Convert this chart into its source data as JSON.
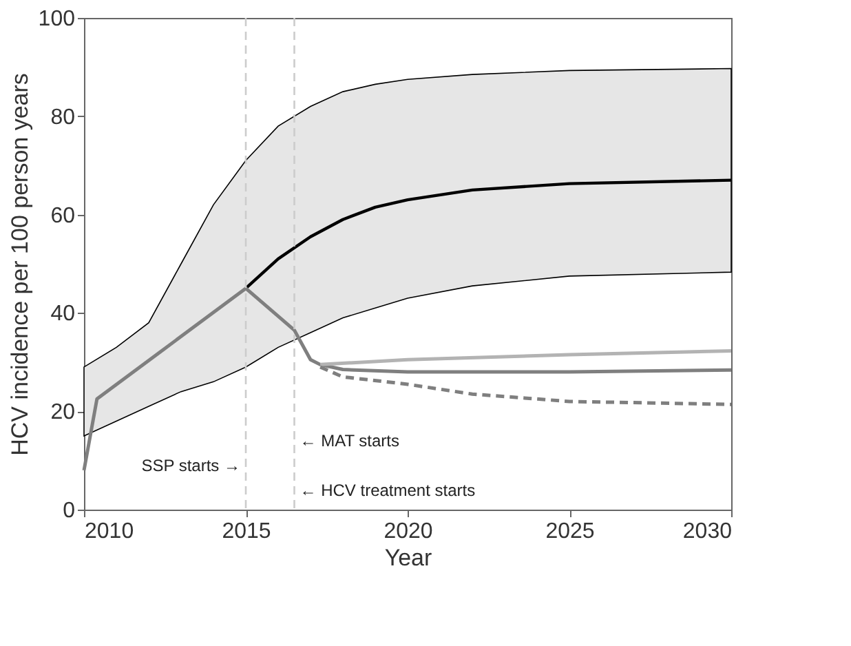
{
  "chart_data": {
    "type": "line",
    "xlabel": "Year",
    "ylabel": "HCV incidence per 100 person years",
    "xlim": [
      2010,
      2030
    ],
    "xticks": [
      2010,
      2015,
      2020,
      2025,
      2030
    ],
    "ylim": [
      0,
      100
    ],
    "yticks": [
      0,
      20,
      40,
      60,
      80,
      100
    ],
    "grid": false,
    "series": [
      {
        "color": "#000000",
        "x": [
          2010,
          2011,
          2012,
          2013,
          2014,
          2015,
          2016,
          2017,
          2018,
          2019,
          2020,
          2022,
          2025,
          2030
        ],
        "values": [
          null,
          null,
          null,
          null,
          null,
          45,
          51,
          55.5,
          59,
          61.5,
          63,
          65,
          66.3,
          67
        ],
        "lower": [
          15,
          18,
          21,
          24,
          26,
          29,
          33,
          36,
          39,
          41,
          43,
          45.5,
          47.5,
          48.3
        ],
        "upper": [
          29,
          33,
          38,
          50,
          62,
          71,
          78,
          82,
          85,
          86.5,
          87.5,
          88.5,
          89.3,
          89.7
        ]
      },
      {
        "color": "#7f7f7f",
        "x": [
          2010,
          2010.4,
          2015,
          2016.5,
          2017,
          2017.3,
          2018,
          2020,
          2025,
          2030
        ],
        "values": [
          8,
          22.5,
          45,
          36.5,
          30.5,
          29.5,
          28.5,
          28,
          28,
          28.4
        ]
      },
      {
        "color": "#b3b3b3",
        "x": [
          2017.3,
          2020,
          2025,
          2030
        ],
        "values": [
          29.5,
          30.5,
          31.5,
          32.3
        ]
      },
      {
        "color": "#7f7f7f",
        "line_style": "dashed",
        "x": [
          2017.3,
          2018,
          2020,
          2022,
          2025,
          2030
        ],
        "values": [
          29,
          27,
          25.5,
          23.5,
          22,
          21.4
        ]
      }
    ],
    "ref_lines": [
      {
        "axis": "x",
        "value": 2015,
        "color": "#cccccc",
        "line_style": "dashed",
        "label": "SSP starts →"
      },
      {
        "axis": "x",
        "value": 2016.5,
        "color": "#cccccc",
        "line_style": "dashed",
        "label": "← MAT starts"
      }
    ],
    "annotations": [
      "← HCV treatment starts"
    ]
  }
}
